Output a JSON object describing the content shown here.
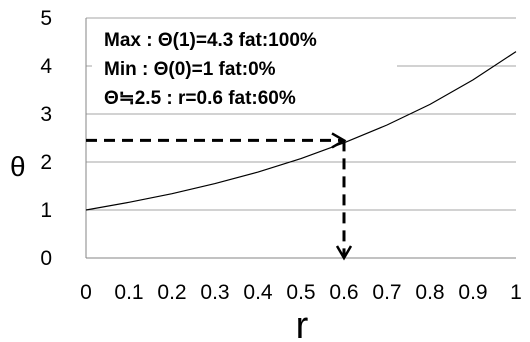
{
  "chart_data": {
    "type": "line",
    "title": "",
    "xlabel": "r",
    "ylabel": "θ",
    "xlim": [
      0,
      1
    ],
    "ylim": [
      0,
      5
    ],
    "xticks": [
      "0",
      "0.1",
      "0.2",
      "0.3",
      "0.4",
      "0.5",
      "0.6",
      "0.7",
      "0.8",
      "0.9",
      "1"
    ],
    "yticks": [
      "0",
      "1",
      "2",
      "3",
      "4",
      "5"
    ],
    "grid": "horizontal",
    "series": [
      {
        "x": [
          0,
          0.1,
          0.2,
          0.3,
          0.4,
          0.5,
          0.6,
          0.7,
          0.8,
          0.9,
          1.0
        ],
        "y": [
          1.0,
          1.16,
          1.34,
          1.55,
          1.79,
          2.07,
          2.4,
          2.77,
          3.2,
          3.71,
          4.3
        ]
      }
    ],
    "marker": {
      "x": 0.6,
      "y": 2.45
    },
    "annotations": [
      "Max : Θ(1)=4.3  fat:100%",
      "Min : Θ(0)=1  fat:0%",
      "Θ≒2.5 : r=0.6 fat:60%"
    ],
    "colors": {
      "line": "#000000",
      "grid": "#a6a6a6",
      "axis": "#868686"
    }
  }
}
